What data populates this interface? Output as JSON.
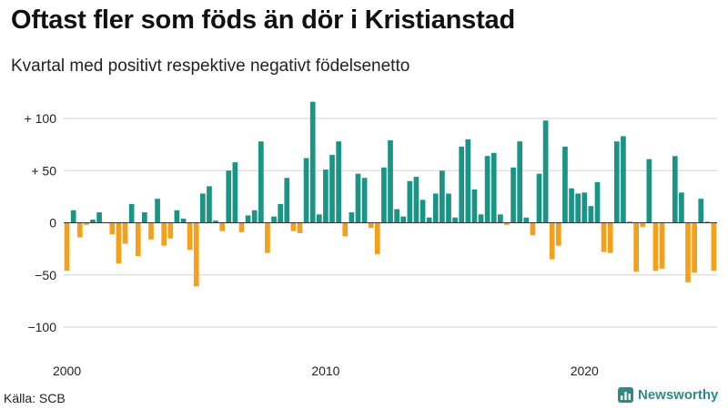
{
  "header": {
    "title": "Oftast fler som föds än dör i Kristianstad",
    "subtitle": "Kvartal med positivt respektive negativt födelsenetto"
  },
  "footer": {
    "source": "Källa: SCB",
    "brand": "Newsworthy",
    "brand_icon": "newsworthy-logo-icon"
  },
  "colors": {
    "positive": "#1a9485",
    "negative": "#f5a01a",
    "grid": "#d2d2d2",
    "axis": "#333333"
  },
  "chart_data": {
    "type": "bar",
    "title": "Oftast fler som föds än dör i Kristianstad",
    "subtitle": "Kvartal med positivt respektive negativt födelsenetto",
    "xlabel": "",
    "ylabel": "",
    "x_start": 2000,
    "periods_per_year": 4,
    "x_ticks": [
      {
        "label": "2000",
        "value": 2000
      },
      {
        "label": "2010",
        "value": 2010
      },
      {
        "label": "2020",
        "value": 2020
      }
    ],
    "y_ticks": [
      {
        "label": "+ 100",
        "value": 100
      },
      {
        "label": "+  50",
        "value": 50
      },
      {
        "label": "0",
        "value": 0
      },
      {
        "label": "−50",
        "value": -50
      },
      {
        "label": "−100",
        "value": -100
      }
    ],
    "ylim": [
      -115,
      125
    ],
    "grid": true,
    "values": [
      -46,
      12,
      -14,
      -2,
      3,
      10,
      0,
      -11,
      -39,
      -20,
      18,
      -32,
      10,
      -16,
      23,
      -22,
      -15,
      12,
      4,
      -26,
      -61,
      28,
      35,
      2,
      -8,
      50,
      58,
      -9,
      7,
      12,
      78,
      -29,
      6,
      18,
      43,
      -8,
      -10,
      62,
      116,
      8,
      51,
      65,
      78,
      -13,
      10,
      47,
      43,
      -5,
      -30,
      53,
      79,
      13,
      6,
      40,
      44,
      22,
      5,
      28,
      50,
      28,
      5,
      73,
      80,
      32,
      8,
      64,
      67,
      8,
      -2,
      53,
      78,
      5,
      -12,
      47,
      98,
      -35,
      -22,
      73,
      33,
      28,
      29,
      16,
      39,
      -28,
      -29,
      78,
      83,
      1,
      -47,
      -4,
      61,
      -46,
      -44,
      0,
      64,
      29,
      -57,
      -48,
      23,
      1,
      -46
    ]
  }
}
